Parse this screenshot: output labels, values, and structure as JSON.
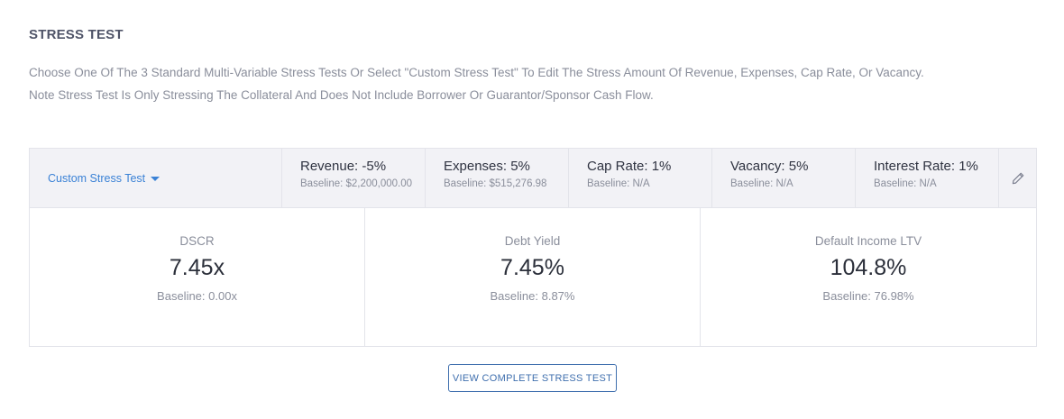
{
  "header": {
    "title": "STRESS TEST",
    "description_line1": "Choose One Of The 3 Standard Multi-Variable Stress Tests Or Select \"Custom Stress Test\" To Edit The Stress Amount Of Revenue, Expenses, Cap Rate, Or Vacancy.",
    "description_line2": "Note Stress Test Is Only Stressing The Collateral And Does Not Include Borrower Or Guarantor/Sponsor Cash Flow."
  },
  "selector": {
    "label": "Custom Stress Test"
  },
  "params": [
    {
      "label": "Revenue: -5%",
      "baseline": "Baseline: $2,200,000.00"
    },
    {
      "label": "Expenses: 5%",
      "baseline": "Baseline: $515,276.98"
    },
    {
      "label": "Cap Rate: 1%",
      "baseline": "Baseline: N/A"
    },
    {
      "label": "Vacancy: 5%",
      "baseline": "Baseline: N/A"
    },
    {
      "label": "Interest Rate: 1%",
      "baseline": "Baseline: N/A"
    }
  ],
  "metrics": [
    {
      "name": "DSCR",
      "value": "7.45x",
      "baseline": "Baseline: 0.00x"
    },
    {
      "name": "Debt Yield",
      "value": "7.45%",
      "baseline": "Baseline: 8.87%"
    },
    {
      "name": "Default Income LTV",
      "value": "104.8%",
      "baseline": "Baseline: 76.98%"
    }
  ],
  "actions": {
    "view_complete_label": "VIEW COMPLETE STRESS TEST"
  },
  "icons": {
    "edit": "pencil-icon",
    "dropdown": "caret-down-icon"
  },
  "colors": {
    "accent": "#3b82d6",
    "button_border": "#3f6fae",
    "header_bg": "#f2f2f6"
  }
}
